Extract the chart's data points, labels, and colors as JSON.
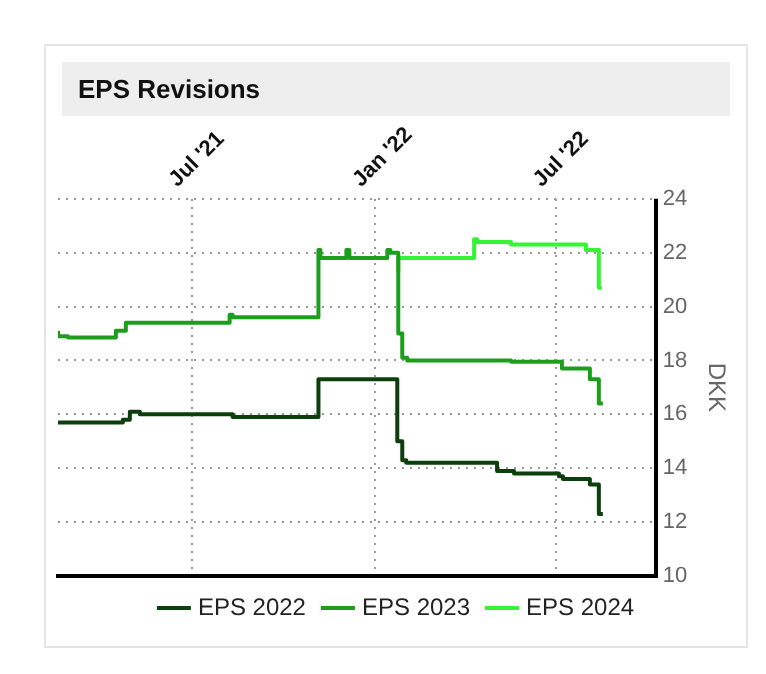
{
  "chart_data": {
    "type": "step",
    "title": "EPS Revisions",
    "ylabel": "DKK",
    "xlim": [
      "2021-02-17",
      "2022-10-10"
    ],
    "xticks": [
      {
        "value": "2021-07-01",
        "label": "Jul '21"
      },
      {
        "value": "2022-01-01",
        "label": "Jan '22"
      },
      {
        "value": "2022-07-01",
        "label": "Jul '22"
      }
    ],
    "ylim": [
      10,
      24
    ],
    "yticks": [
      10,
      12,
      14,
      16,
      18,
      20,
      22,
      24
    ],
    "grid": true,
    "legend": "bottom",
    "marker": "none",
    "line_style": "solid",
    "series": [
      {
        "name": "EPS 2022",
        "color": "#0b3f0b",
        "x": [
          "2021-02-17",
          "2021-04-23",
          "2021-04-30",
          "2021-05-10",
          "2021-05-21",
          "2021-08-11",
          "2021-10-09",
          "2021-11-05",
          "2021-11-07",
          "2022-01-23",
          "2022-01-28",
          "2022-02-01",
          "2022-05-03",
          "2022-05-20",
          "2022-07-04",
          "2022-07-08",
          "2022-08-04",
          "2022-08-06",
          "2022-08-13",
          "2022-08-17"
        ],
        "values": [
          15.7,
          15.7,
          15.8,
          16.1,
          16.0,
          16.0,
          15.9,
          15.9,
          17.3,
          17.3,
          15.0,
          14.3,
          14.2,
          13.9,
          13.8,
          13.7,
          13.6,
          13.4,
          13.4,
          12.3
        ]
      },
      {
        "name": "EPS 2023",
        "color": "#1c9e1c",
        "x": [
          "2021-02-17",
          "2021-02-27",
          "2021-04-16",
          "2021-04-26",
          "2021-05-07",
          "2021-08-08",
          "2021-08-11",
          "2021-08-21",
          "2021-11-05",
          "2021-11-07",
          "2021-11-12",
          "2021-12-03",
          "2021-12-06",
          "2021-12-16",
          "2022-01-13",
          "2022-01-16",
          "2022-01-24",
          "2022-01-28",
          "2022-02-02",
          "2022-05-17",
          "2022-07-07",
          "2022-07-10",
          "2022-08-04",
          "2022-08-13",
          "2022-08-17"
        ],
        "values": [
          19.1,
          18.9,
          18.85,
          19.1,
          19.4,
          19.4,
          19.7,
          19.6,
          19.6,
          22.1,
          21.8,
          21.8,
          22.1,
          21.8,
          21.8,
          22.1,
          22.0,
          19.0,
          18.1,
          18.0,
          17.95,
          17.7,
          17.7,
          17.3,
          16.4
        ]
      },
      {
        "name": "EPS 2024",
        "color": "#33f533",
        "x": [
          "2022-01-24",
          "2022-02-01",
          "2022-04-10",
          "2022-04-13",
          "2022-05-17",
          "2022-07-31",
          "2022-08-13",
          "2022-08-16"
        ],
        "values": [
          21.3,
          21.8,
          21.8,
          22.5,
          22.4,
          22.3,
          22.1,
          20.7
        ]
      }
    ]
  }
}
